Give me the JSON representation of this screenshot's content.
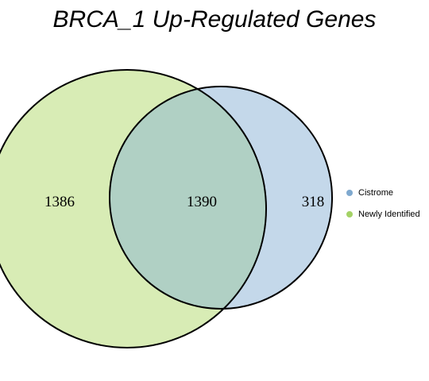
{
  "title": "BRCA_1 Up-Regulated Genes",
  "sets": [
    {
      "name": "Cistrome",
      "color": "#7fa9cf",
      "fill": "#c4d8ea"
    },
    {
      "name": "Newly Identified",
      "color": "#a4d266",
      "fill": "#d8ecb5"
    }
  ],
  "overlap_fill": "#b0d0c4",
  "regions": {
    "newly_identified_only": "1386",
    "both": "1390",
    "cistrome_only": "318"
  }
}
